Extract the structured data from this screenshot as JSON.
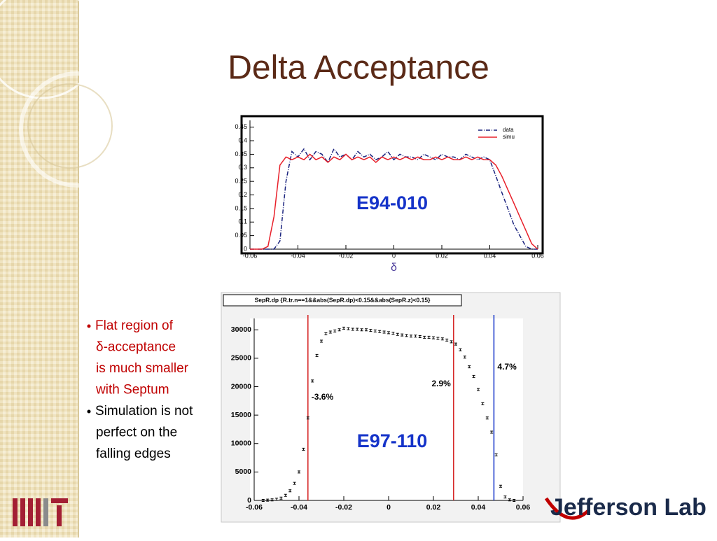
{
  "title": "Delta Acceptance",
  "bullets": [
    {
      "lines": [
        "Flat region of",
        "δ-acceptance",
        "is much smaller",
        "with Septum"
      ],
      "color": "#c00000"
    },
    {
      "lines": [
        "Simulation is not",
        "perfect on the",
        "falling edges"
      ],
      "color": "#000000"
    }
  ],
  "logo_right": "Jefferson Lab",
  "chart_data": [
    {
      "type": "line",
      "annotation": "E94-010",
      "x_label": "δ",
      "x": [
        -0.06,
        -0.0575,
        -0.055,
        -0.0525,
        -0.05,
        -0.0475,
        -0.045,
        -0.0425,
        -0.04,
        -0.0375,
        -0.035,
        -0.0325,
        -0.03,
        -0.0275,
        -0.025,
        -0.0225,
        -0.02,
        -0.0175,
        -0.015,
        -0.0125,
        -0.01,
        -0.0075,
        -0.005,
        -0.0025,
        0,
        0.0025,
        0.005,
        0.0075,
        0.01,
        0.0125,
        0.015,
        0.0175,
        0.02,
        0.0225,
        0.025,
        0.0275,
        0.03,
        0.0325,
        0.035,
        0.0375,
        0.04,
        0.0425,
        0.045,
        0.0475,
        0.05,
        0.0525,
        0.055,
        0.0575,
        0.06
      ],
      "series": [
        {
          "name": "data",
          "color": "#1a237e",
          "style": "dashdot",
          "values": [
            0,
            0,
            0,
            0,
            0,
            0.03,
            0.25,
            0.36,
            0.34,
            0.37,
            0.33,
            0.36,
            0.35,
            0.32,
            0.37,
            0.34,
            0.35,
            0.33,
            0.36,
            0.34,
            0.35,
            0.33,
            0.34,
            0.36,
            0.33,
            0.35,
            0.34,
            0.34,
            0.33,
            0.35,
            0.34,
            0.33,
            0.35,
            0.34,
            0.34,
            0.33,
            0.35,
            0.34,
            0.33,
            0.34,
            0.33,
            0.27,
            0.21,
            0.15,
            0.09,
            0.05,
            0.01,
            0,
            0
          ]
        },
        {
          "name": "simu",
          "color": "#e8202a",
          "style": "solid",
          "values": [
            0,
            0,
            0,
            0.01,
            0.12,
            0.31,
            0.34,
            0.33,
            0.34,
            0.33,
            0.35,
            0.33,
            0.34,
            0.32,
            0.34,
            0.33,
            0.35,
            0.33,
            0.34,
            0.33,
            0.34,
            0.32,
            0.34,
            0.33,
            0.34,
            0.33,
            0.34,
            0.33,
            0.34,
            0.33,
            0.33,
            0.34,
            0.33,
            0.34,
            0.33,
            0.33,
            0.34,
            0.33,
            0.34,
            0.33,
            0.33,
            0.31,
            0.27,
            0.22,
            0.17,
            0.12,
            0.07,
            0.02,
            0
          ]
        }
      ],
      "xlim": [
        -0.06,
        0.06
      ],
      "xticks": [
        -0.06,
        -0.04,
        -0.02,
        0,
        0.02,
        0.04,
        0.06
      ],
      "ylim": [
        0,
        0.475
      ],
      "yticks": [
        0,
        0.05,
        0.1,
        0.15,
        0.2,
        0.25,
        0.3,
        0.35,
        0.4,
        0.45
      ],
      "legend": "top-right"
    },
    {
      "type": "scatter",
      "title": "SepR.dp {R.tr.n==1&&abs(SepR.dp)<0.15&&abs(SepR.z)<0.15}",
      "annotation": "E97-110",
      "x": [
        -0.056,
        -0.054,
        -0.052,
        -0.05,
        -0.048,
        -0.046,
        -0.044,
        -0.042,
        -0.04,
        -0.038,
        -0.036,
        -0.034,
        -0.032,
        -0.03,
        -0.028,
        -0.026,
        -0.024,
        -0.022,
        -0.02,
        -0.018,
        -0.016,
        -0.014,
        -0.012,
        -0.01,
        -0.008,
        -0.006,
        -0.004,
        -0.002,
        0,
        0.002,
        0.004,
        0.006,
        0.008,
        0.01,
        0.012,
        0.014,
        0.016,
        0.018,
        0.02,
        0.022,
        0.024,
        0.026,
        0.028,
        0.03,
        0.032,
        0.034,
        0.036,
        0.038,
        0.04,
        0.042,
        0.044,
        0.046,
        0.048,
        0.05,
        0.052,
        0.054,
        0.056
      ],
      "values": [
        0,
        50,
        100,
        200,
        400,
        900,
        1700,
        3000,
        5000,
        9000,
        14500,
        21000,
        25500,
        28000,
        29300,
        29600,
        29800,
        30000,
        30300,
        30200,
        30100,
        30100,
        30000,
        30000,
        29900,
        29800,
        29700,
        29600,
        29500,
        29400,
        29200,
        29100,
        29000,
        28900,
        28900,
        28800,
        28700,
        28700,
        28600,
        28500,
        28400,
        28200,
        27900,
        27500,
        26500,
        25200,
        23500,
        21800,
        19500,
        17000,
        14500,
        12000,
        8000,
        2500,
        600,
        100,
        0
      ],
      "color": "#000000",
      "vlines": [
        {
          "x": -0.036,
          "color": "#d42020",
          "label": "-3.6%"
        },
        {
          "x": 0.029,
          "color": "#d42020",
          "label": "2.9%"
        },
        {
          "x": 0.047,
          "color": "#1030c8",
          "label": "4.7%"
        }
      ],
      "xlim": [
        -0.06,
        0.06
      ],
      "xticks": [
        -0.06,
        -0.04,
        -0.02,
        0,
        0.02,
        0.04,
        0.06
      ],
      "ylim": [
        0,
        32000
      ],
      "yticks": [
        0,
        5000,
        10000,
        15000,
        20000,
        25000,
        30000
      ]
    }
  ]
}
